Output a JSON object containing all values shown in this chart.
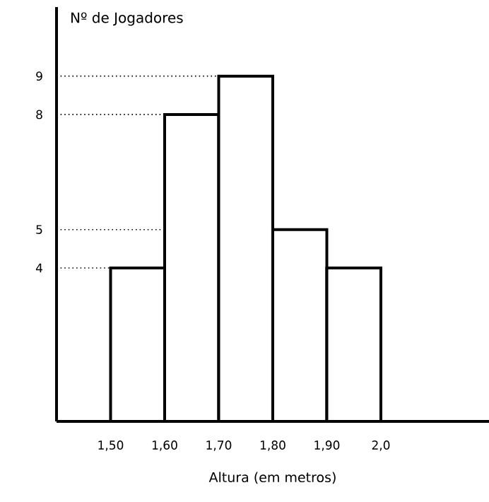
{
  "chart_data": {
    "type": "histogram",
    "xlabel": "Altura (em metros)",
    "ylabel": "Nº de Jogadores",
    "bins": [
      1.5,
      1.6,
      1.7,
      1.8,
      1.9,
      2.0
    ],
    "values": [
      4,
      8,
      9,
      5,
      4
    ],
    "color": "#ffffff",
    "xlim": [
      1.4,
      2.2
    ],
    "ylim": [
      0,
      10.8
    ],
    "xticks": [
      {
        "value": 1.5,
        "label": "1,50"
      },
      {
        "value": 1.6,
        "label": "1,60"
      },
      {
        "value": 1.7,
        "label": "1,70"
      },
      {
        "value": 1.8,
        "label": "1,80"
      },
      {
        "value": 1.9,
        "label": "1,90"
      },
      {
        "value": 2.0,
        "label": "2,0"
      }
    ],
    "yticks": [
      4,
      5,
      8,
      9
    ],
    "ref_lines": [
      {
        "axis": "y",
        "value": 4,
        "line_style": "dotted"
      },
      {
        "axis": "y",
        "value": 5,
        "line_style": "dotted"
      },
      {
        "axis": "y",
        "value": 8,
        "line_style": "dotted"
      },
      {
        "axis": "y",
        "value": 9,
        "line_style": "dotted"
      }
    ],
    "line_style": "solid"
  }
}
